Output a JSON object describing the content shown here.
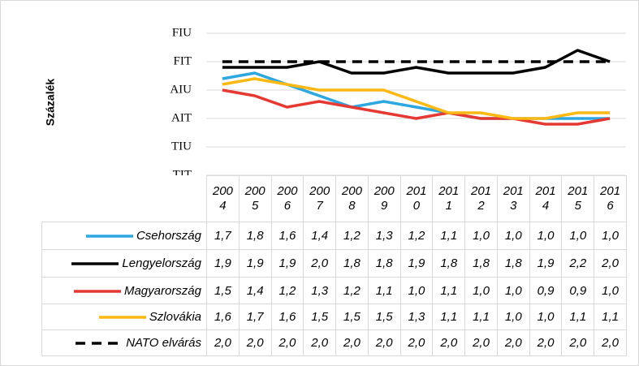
{
  "chart_data": {
    "type": "line",
    "y_label": "Százalék",
    "categories": [
      "2004",
      "2005",
      "2006",
      "2007",
      "2008",
      "2009",
      "2010",
      "2011",
      "2012",
      "2013",
      "2014",
      "2015",
      "2016"
    ],
    "ylim": [
      0,
      2.5
    ],
    "yticks": [
      {
        "value": 0,
        "label": "TIT"
      },
      {
        "value": 0.5,
        "label": "TIU"
      },
      {
        "value": 1.0,
        "label": "AIT"
      },
      {
        "value": 1.5,
        "label": "AIU"
      },
      {
        "value": 2.0,
        "label": "FIT"
      },
      {
        "value": 2.5,
        "label": "FIU"
      }
    ],
    "grid": true,
    "series": [
      {
        "name": "Csehország",
        "color": "#2ea7e0",
        "dashed": false,
        "values": [
          1.7,
          1.8,
          1.6,
          1.4,
          1.2,
          1.3,
          1.2,
          1.1,
          1.0,
          1.0,
          1.0,
          1.0,
          1.0
        ],
        "value_labels": [
          "1,7",
          "1,8",
          "1,6",
          "1,4",
          "1,2",
          "1,3",
          "1,2",
          "1,1",
          "1,0",
          "1,0",
          "1,0",
          "1,0",
          "1,0"
        ]
      },
      {
        "name": "Lengyelország",
        "color": "#000000",
        "dashed": false,
        "values": [
          1.9,
          1.9,
          1.9,
          2.0,
          1.8,
          1.8,
          1.9,
          1.8,
          1.8,
          1.8,
          1.9,
          2.2,
          2.0
        ],
        "value_labels": [
          "1,9",
          "1,9",
          "1,9",
          "2,0",
          "1,8",
          "1,8",
          "1,9",
          "1,8",
          "1,8",
          "1,8",
          "1,9",
          "2,2",
          "2,0"
        ]
      },
      {
        "name": "Magyarország",
        "color": "#e53a33",
        "dashed": false,
        "values": [
          1.5,
          1.4,
          1.2,
          1.3,
          1.2,
          1.1,
          1.0,
          1.1,
          1.0,
          1.0,
          0.9,
          0.9,
          1.0
        ],
        "value_labels": [
          "1,5",
          "1,4",
          "1,2",
          "1,3",
          "1,2",
          "1,1",
          "1,0",
          "1,1",
          "1,0",
          "1,0",
          "0,9",
          "0,9",
          "1,0"
        ]
      },
      {
        "name": "Szlovákia",
        "color": "#fdb913",
        "dashed": false,
        "values": [
          1.6,
          1.7,
          1.6,
          1.5,
          1.5,
          1.5,
          1.3,
          1.1,
          1.1,
          1.0,
          1.0,
          1.1,
          1.1
        ],
        "value_labels": [
          "1,6",
          "1,7",
          "1,6",
          "1,5",
          "1,5",
          "1,5",
          "1,3",
          "1,1",
          "1,1",
          "1,0",
          "1,0",
          "1,1",
          "1,1"
        ]
      },
      {
        "name": "NATO elvárás",
        "color": "#000000",
        "dashed": true,
        "values": [
          2.0,
          2.0,
          2.0,
          2.0,
          2.0,
          2.0,
          2.0,
          2.0,
          2.0,
          2.0,
          2.0,
          2.0,
          2.0
        ],
        "value_labels": [
          "2,0",
          "2,0",
          "2,0",
          "2,0",
          "2,0",
          "2,0",
          "2,0",
          "2,0",
          "2,0",
          "2,0",
          "2,0",
          "2,0",
          "2,0"
        ]
      }
    ]
  }
}
